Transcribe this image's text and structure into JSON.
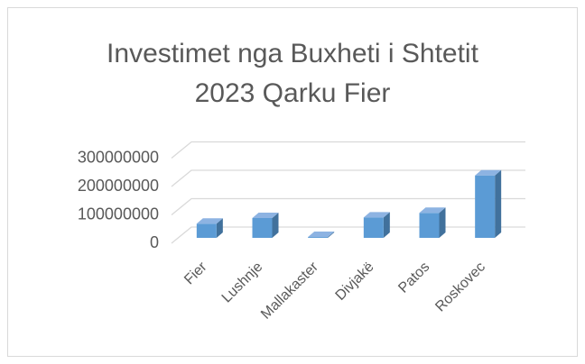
{
  "chart_data": {
    "type": "bar",
    "title": "Investimet nga Buxheti i Shtetit 2023 Qarku Fier",
    "categories": [
      "Fier",
      "Lushnje",
      "Mallakaster",
      "Divjakë",
      "Patos",
      "Roskovec"
    ],
    "values": [
      50000000,
      70000000,
      3000000,
      72000000,
      88000000,
      220000000
    ],
    "color": "#5b9bd5",
    "ylim": [
      0,
      300000000
    ],
    "yticks": [
      0,
      100000000,
      200000000,
      300000000
    ],
    "grid": true
  }
}
